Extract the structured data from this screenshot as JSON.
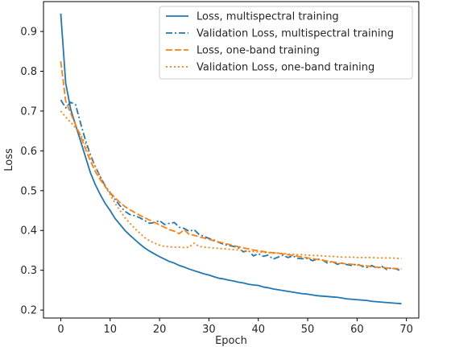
{
  "chart_data": {
    "type": "line",
    "title": "",
    "xlabel": "Epoch",
    "ylabel": "Loss",
    "xlim": [
      -3.5,
      72.5
    ],
    "ylim": [
      0.18,
      0.975
    ],
    "xticks": [
      0,
      10,
      20,
      30,
      40,
      50,
      60,
      70
    ],
    "yticks": [
      0.2,
      0.3,
      0.4,
      0.5,
      0.6,
      0.7,
      0.8,
      0.9
    ],
    "grid": false,
    "legend_position": "top-right",
    "x": [
      0,
      1,
      2,
      3,
      4,
      5,
      6,
      7,
      8,
      9,
      10,
      11,
      12,
      13,
      14,
      15,
      16,
      17,
      18,
      19,
      20,
      21,
      22,
      23,
      24,
      25,
      26,
      27,
      28,
      29,
      30,
      31,
      32,
      33,
      34,
      35,
      36,
      37,
      38,
      39,
      40,
      41,
      42,
      43,
      44,
      45,
      46,
      47,
      48,
      49,
      50,
      51,
      52,
      53,
      54,
      55,
      56,
      57,
      58,
      59,
      60,
      61,
      62,
      63,
      64,
      65,
      66,
      67,
      68,
      69
    ],
    "series": [
      {
        "name": "Loss, multispectral training",
        "color": "#1f77b4",
        "dash": "solid",
        "values": [
          0.945,
          0.77,
          0.705,
          0.665,
          0.625,
          0.585,
          0.545,
          0.515,
          0.49,
          0.468,
          0.45,
          0.43,
          0.415,
          0.4,
          0.388,
          0.377,
          0.366,
          0.356,
          0.348,
          0.341,
          0.334,
          0.328,
          0.322,
          0.318,
          0.312,
          0.308,
          0.303,
          0.299,
          0.295,
          0.291,
          0.288,
          0.284,
          0.28,
          0.278,
          0.275,
          0.273,
          0.27,
          0.268,
          0.265,
          0.263,
          0.262,
          0.258,
          0.256,
          0.253,
          0.251,
          0.249,
          0.247,
          0.245,
          0.243,
          0.241,
          0.24,
          0.238,
          0.236,
          0.235,
          0.234,
          0.233,
          0.232,
          0.23,
          0.228,
          0.227,
          0.226,
          0.225,
          0.224,
          0.222,
          0.221,
          0.22,
          0.219,
          0.218,
          0.217,
          0.216
        ]
      },
      {
        "name": "Validation Loss, multispectral training",
        "color": "#1f77b4",
        "dash": "dashdot",
        "values": [
          0.728,
          0.708,
          0.722,
          0.716,
          0.67,
          0.627,
          0.59,
          0.56,
          0.535,
          0.512,
          0.495,
          0.478,
          0.462,
          0.448,
          0.44,
          0.437,
          0.432,
          0.425,
          0.418,
          0.42,
          0.425,
          0.415,
          0.418,
          0.42,
          0.408,
          0.405,
          0.398,
          0.402,
          0.39,
          0.385,
          0.38,
          0.376,
          0.37,
          0.365,
          0.362,
          0.36,
          0.356,
          0.346,
          0.35,
          0.336,
          0.342,
          0.335,
          0.338,
          0.328,
          0.333,
          0.338,
          0.332,
          0.336,
          0.33,
          0.329,
          0.33,
          0.324,
          0.328,
          0.326,
          0.318,
          0.322,
          0.315,
          0.318,
          0.314,
          0.312,
          0.316,
          0.31,
          0.307,
          0.312,
          0.305,
          0.31,
          0.302,
          0.306,
          0.303,
          0.298
        ]
      },
      {
        "name": "Loss, one-band training",
        "color": "#ff7f0e",
        "dash": "dashed",
        "values": [
          0.825,
          0.725,
          0.695,
          0.665,
          0.638,
          0.605,
          0.575,
          0.548,
          0.528,
          0.51,
          0.495,
          0.482,
          0.47,
          0.46,
          0.452,
          0.445,
          0.438,
          0.432,
          0.426,
          0.42,
          0.414,
          0.408,
          0.402,
          0.398,
          0.392,
          0.402,
          0.39,
          0.388,
          0.384,
          0.381,
          0.378,
          0.374,
          0.371,
          0.368,
          0.365,
          0.362,
          0.359,
          0.356,
          0.354,
          0.351,
          0.349,
          0.347,
          0.345,
          0.344,
          0.343,
          0.341,
          0.339,
          0.337,
          0.335,
          0.333,
          0.331,
          0.329,
          0.327,
          0.325,
          0.323,
          0.321,
          0.319,
          0.317,
          0.316,
          0.315,
          0.313,
          0.312,
          0.311,
          0.309,
          0.308,
          0.307,
          0.306,
          0.305,
          0.304,
          0.303
        ]
      },
      {
        "name": "Validation Loss, one-band training",
        "color": "#ff7f0e",
        "dash": "dotted",
        "values": [
          0.7,
          0.685,
          0.672,
          0.658,
          0.64,
          0.618,
          0.585,
          0.56,
          0.535,
          0.51,
          0.49,
          0.468,
          0.45,
          0.432,
          0.418,
          0.405,
          0.393,
          0.382,
          0.374,
          0.368,
          0.363,
          0.36,
          0.359,
          0.358,
          0.358,
          0.357,
          0.358,
          0.368,
          0.36,
          0.358,
          0.357,
          0.356,
          0.355,
          0.354,
          0.353,
          0.352,
          0.351,
          0.349,
          0.348,
          0.347,
          0.346,
          0.345,
          0.344,
          0.343,
          0.343,
          0.342,
          0.341,
          0.34,
          0.339,
          0.339,
          0.338,
          0.337,
          0.337,
          0.336,
          0.335,
          0.335,
          0.334,
          0.333,
          0.333,
          0.333,
          0.332,
          0.332,
          0.332,
          0.332,
          0.331,
          0.331,
          0.331,
          0.331,
          0.33,
          0.33
        ]
      }
    ]
  }
}
